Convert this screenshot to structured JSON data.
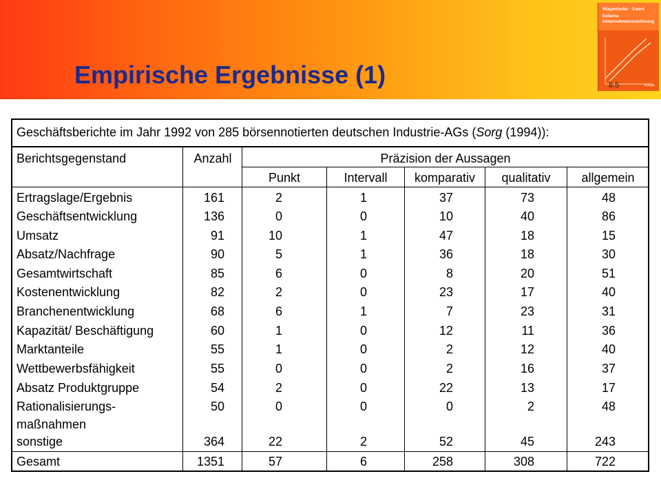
{
  "slide": {
    "title": "Empirische Ergebnisse (1)",
    "page_number": "8.5",
    "book": {
      "author": "Wagenhofer · Ewert",
      "title_line1": "Externe",
      "title_line2": "Unternehmensrechnung",
      "publisher": "Springer"
    }
  },
  "table": {
    "caption_prefix": "Geschäftsberichte im Jahr 1992 von 285 börsennotierten deutschen Industrie-AGs (",
    "caption_source": "Sorg",
    "caption_suffix": " (1994)):",
    "headers": {
      "subject": "Berichtsgegenstand",
      "count": "Anzahl",
      "precision": "Präzision der Aussagen",
      "punkt": "Punkt",
      "intervall": "Intervall",
      "komparativ": "komparativ",
      "qualitativ": "qualitativ",
      "allgemein": "allgemein"
    },
    "rows": [
      {
        "label": "Ertragslage/Ergebnis",
        "anzahl": "161",
        "punkt": "2",
        "intervall": "1",
        "komparativ": "37",
        "qualitativ": "73",
        "allgemein": "48"
      },
      {
        "label": "Geschäftsentwicklung",
        "anzahl": "136",
        "punkt": "0",
        "intervall": "0",
        "komparativ": "10",
        "qualitativ": "40",
        "allgemein": "86"
      },
      {
        "label": "Umsatz",
        "anzahl": "91",
        "punkt": "10",
        "intervall": "1",
        "komparativ": "47",
        "qualitativ": "18",
        "allgemein": "15"
      },
      {
        "label": "Absatz/Nachfrage",
        "anzahl": "90",
        "punkt": "5",
        "intervall": "1",
        "komparativ": "36",
        "qualitativ": "18",
        "allgemein": "30"
      },
      {
        "label": "Gesamtwirtschaft",
        "anzahl": "85",
        "punkt": "6",
        "intervall": "0",
        "komparativ": "8",
        "qualitativ": "20",
        "allgemein": "51"
      },
      {
        "label": "Kostenentwicklung",
        "anzahl": "82",
        "punkt": "2",
        "intervall": "0",
        "komparativ": "23",
        "qualitativ": "17",
        "allgemein": "40"
      },
      {
        "label": "Branchenentwicklung",
        "anzahl": "68",
        "punkt": "6",
        "intervall": "1",
        "komparativ": "7",
        "qualitativ": "23",
        "allgemein": "31"
      },
      {
        "label": "Kapazität/ Beschäftigung",
        "anzahl": "60",
        "punkt": "1",
        "intervall": "0",
        "komparativ": "12",
        "qualitativ": "11",
        "allgemein": "36"
      },
      {
        "label": "Marktanteile",
        "anzahl": "55",
        "punkt": "1",
        "intervall": "0",
        "komparativ": "2",
        "qualitativ": "12",
        "allgemein": "40"
      },
      {
        "label": "Wettbewerbsfähigkeit",
        "anzahl": "55",
        "punkt": "0",
        "intervall": "0",
        "komparativ": "2",
        "qualitativ": "16",
        "allgemein": "37"
      },
      {
        "label": "Absatz Produktgruppe",
        "anzahl": "54",
        "punkt": "2",
        "intervall": "0",
        "komparativ": "22",
        "qualitativ": "13",
        "allgemein": "17"
      },
      {
        "label": "Rationalisierungs-",
        "label2": "maßnahmen",
        "anzahl": "50",
        "punkt": "0",
        "intervall": "0",
        "komparativ": "0",
        "qualitativ": "2",
        "allgemein": "48"
      },
      {
        "label": "sonstige",
        "anzahl": "364",
        "punkt": "22",
        "intervall": "2",
        "komparativ": "52",
        "qualitativ": "45",
        "allgemein": "243"
      }
    ],
    "total": {
      "label": "Gesamt",
      "anzahl": "1351",
      "punkt": "57",
      "intervall": "6",
      "komparativ": "258",
      "qualitativ": "308",
      "allgemein": "722"
    }
  }
}
